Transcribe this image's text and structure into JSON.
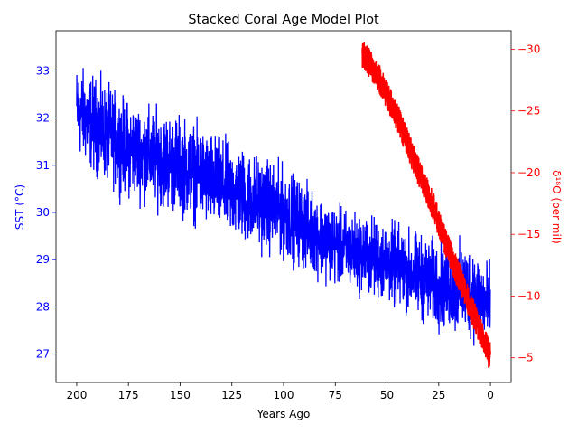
{
  "chart_data": {
    "type": "line",
    "title": "Stacked Coral Age Model Plot",
    "xlabel": "Years Ago",
    "x_axis_inverted": true,
    "xlim": [
      210,
      -10
    ],
    "x_ticks": [
      200,
      175,
      150,
      125,
      100,
      75,
      50,
      25,
      0
    ],
    "y_left": {
      "label": "SST (°C)",
      "color": "#0000ff",
      "ylim": [
        26.4,
        33.85
      ],
      "ticks": [
        27,
        28,
        29,
        30,
        31,
        32,
        33
      ]
    },
    "y_right": {
      "label": "δ¹⁸O (per mil)",
      "color": "#ff0000",
      "ylim": [
        -3.0,
        -31.5
      ],
      "inverted": true,
      "ticks": [
        -30,
        -25,
        -20,
        -15,
        -10,
        -5
      ]
    },
    "series": [
      {
        "axis": "left",
        "color": "#0000ff",
        "x_range": [
          200,
          0
        ],
        "trend_start": 31.8,
        "trend_end": 28.2,
        "upper_envelope": [
          [
            200,
            33.55
          ],
          [
            190,
            33.3
          ],
          [
            175,
            32.8
          ],
          [
            150,
            32.5
          ],
          [
            125,
            31.9
          ],
          [
            100,
            31.4
          ],
          [
            75,
            30.5
          ],
          [
            50,
            30.2
          ],
          [
            25,
            29.8
          ],
          [
            10,
            29.8
          ],
          [
            0,
            29.3
          ]
        ],
        "lower_envelope": [
          [
            200,
            30.8
          ],
          [
            190,
            30.3
          ],
          [
            175,
            29.9
          ],
          [
            150,
            29.5
          ],
          [
            125,
            29.0
          ],
          [
            100,
            28.6
          ],
          [
            75,
            28.1
          ],
          [
            50,
            27.7
          ],
          [
            25,
            27.1
          ],
          [
            10,
            26.9
          ],
          [
            0,
            26.7
          ]
        ]
      },
      {
        "axis": "right",
        "color": "#ff0000",
        "x_range": [
          62,
          0
        ],
        "centerline": [
          [
            62,
            -29.7
          ],
          [
            55,
            -28.0
          ],
          [
            50,
            -26.3
          ],
          [
            45,
            -24.5
          ],
          [
            40,
            -22.3
          ],
          [
            35,
            -20.2
          ],
          [
            30,
            -18.3
          ],
          [
            25,
            -16.0
          ],
          [
            20,
            -13.6
          ],
          [
            15,
            -11.5
          ],
          [
            10,
            -9.3
          ],
          [
            5,
            -7.2
          ],
          [
            0,
            -5.0
          ]
        ],
        "band_halfwidth": 1.2
      }
    ]
  }
}
